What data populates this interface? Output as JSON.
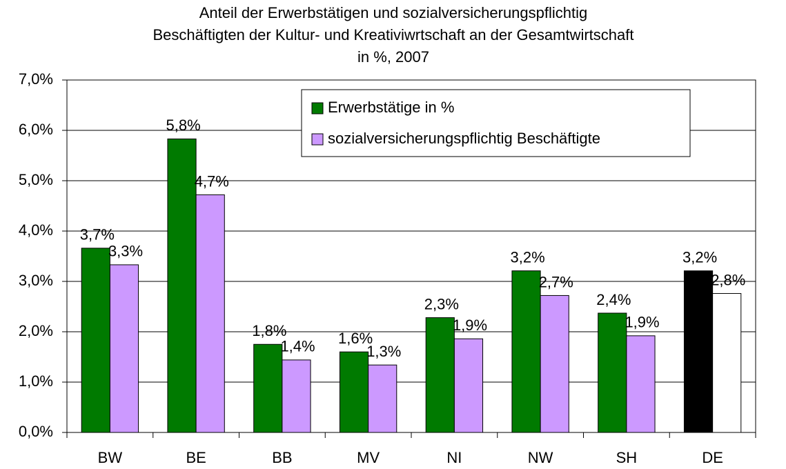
{
  "chart_data": {
    "type": "bar",
    "title": [
      "Anteil der Erwerbstätigen und sozialversicherungspflichtig",
      "Beschäftigten der Kultur- und Kreativiwrtschaft an der Gesamtwirtschaft",
      "in %, 2007"
    ],
    "categories": [
      "BW",
      "BE",
      "BB",
      "MV",
      "NI",
      "NW",
      "SH",
      "DE"
    ],
    "series": [
      {
        "name": "Erwerbstätige in %",
        "color": "#007a00",
        "colors": [
          "#007a00",
          "#007a00",
          "#007a00",
          "#007a00",
          "#007a00",
          "#007a00",
          "#007a00",
          "#000000"
        ],
        "values": [
          3.66,
          5.83,
          1.75,
          1.6,
          2.28,
          3.21,
          2.37,
          3.21
        ],
        "value_labels": [
          "3,7%",
          "5,8%",
          "1,8%",
          "1,6%",
          "2,3%",
          "3,2%",
          "2,4%",
          "3,2%"
        ]
      },
      {
        "name": "sozialversicherungspflichtig Beschäftigte",
        "color": "#cc99ff",
        "colors": [
          "#cc99ff",
          "#cc99ff",
          "#cc99ff",
          "#cc99ff",
          "#cc99ff",
          "#cc99ff",
          "#cc99ff",
          "#ffffff"
        ],
        "values": [
          3.33,
          4.72,
          1.44,
          1.34,
          1.86,
          2.72,
          1.92,
          2.76
        ],
        "value_labels": [
          "3,3%",
          "4,7%",
          "1,4%",
          "1,3%",
          "1,9%",
          "2,7%",
          "1,9%",
          "2,8%"
        ]
      }
    ],
    "ylim": [
      0,
      7
    ],
    "yticks": [
      {
        "value": 0,
        "label": "0,0%"
      },
      {
        "value": 1,
        "label": "1,0%"
      },
      {
        "value": 2,
        "label": "2,0%"
      },
      {
        "value": 3,
        "label": "3,0%"
      },
      {
        "value": 4,
        "label": "4,0%"
      },
      {
        "value": 5,
        "label": "5,0%"
      },
      {
        "value": 6,
        "label": "6,0%"
      },
      {
        "value": 7,
        "label": "7,0%"
      }
    ],
    "grid": true,
    "legend": "top-right"
  }
}
